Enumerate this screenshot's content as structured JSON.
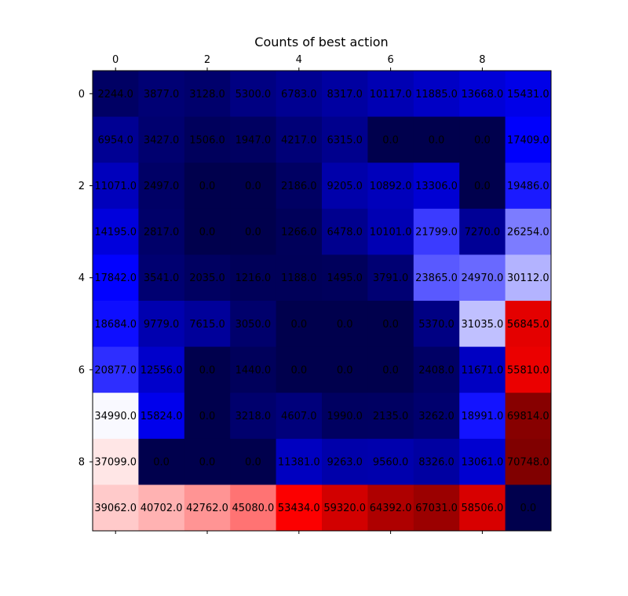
{
  "chart_data": {
    "type": "heatmap",
    "title": "Counts of best action",
    "colormap": "seismic",
    "vmin": 0,
    "vmax": 70748,
    "x_ticks": [
      "0",
      "2",
      "4",
      "6",
      "8"
    ],
    "y_ticks": [
      "0",
      "2",
      "4",
      "6",
      "8"
    ],
    "rows": [
      [
        2244.0,
        3877.0,
        3128.0,
        5300.0,
        6783.0,
        8317.0,
        10117.0,
        11885.0,
        13668.0,
        15431.0
      ],
      [
        6954.0,
        3427.0,
        1506.0,
        1947.0,
        4217.0,
        6315.0,
        0.0,
        0.0,
        0.0,
        17409.0
      ],
      [
        11071.0,
        2497.0,
        0.0,
        0.0,
        2186.0,
        9205.0,
        10892.0,
        13306.0,
        0.0,
        19486.0
      ],
      [
        14195.0,
        2817.0,
        0.0,
        0.0,
        1266.0,
        6478.0,
        10101.0,
        21799.0,
        7270.0,
        26254.0
      ],
      [
        17842.0,
        3541.0,
        2035.0,
        1216.0,
        1188.0,
        1495.0,
        3791.0,
        23865.0,
        24970.0,
        30112.0
      ],
      [
        18684.0,
        9779.0,
        7615.0,
        3050.0,
        0.0,
        0.0,
        0.0,
        5370.0,
        31035.0,
        56845.0
      ],
      [
        20877.0,
        12556.0,
        0.0,
        1440.0,
        0.0,
        0.0,
        0.0,
        2408.0,
        11671.0,
        55810.0
      ],
      [
        34990.0,
        15824.0,
        0.0,
        3218.0,
        4607.0,
        1990.0,
        2135.0,
        3262.0,
        18991.0,
        69814.0
      ],
      [
        37099.0,
        0.0,
        0.0,
        0.0,
        11381.0,
        9263.0,
        9560.0,
        8326.0,
        13061.0,
        70748.0
      ],
      [
        39062.0,
        40702.0,
        42762.0,
        45080.0,
        53434.0,
        59320.0,
        64392.0,
        67031.0,
        58506.0,
        0.0
      ]
    ]
  }
}
